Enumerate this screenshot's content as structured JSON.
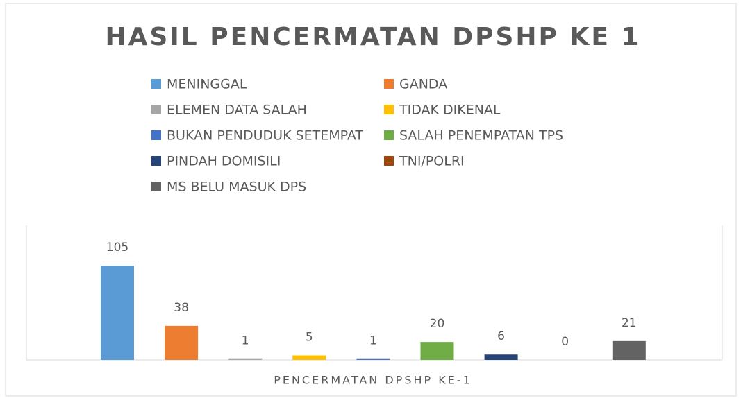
{
  "chart_data": {
    "type": "bar",
    "title": "HASIL PENCERMATAN DPSHP KE 1",
    "categories": [
      "PENCERMATAN DPSHP KE-1"
    ],
    "ylim": [
      0,
      150
    ],
    "series": [
      {
        "name": "MENINGGAL",
        "color": "#5b9bd5",
        "values": [
          105
        ]
      },
      {
        "name": "GANDA",
        "color": "#ed7d31",
        "values": [
          38
        ]
      },
      {
        "name": "ELEMEN DATA SALAH",
        "color": "#a5a5a5",
        "values": [
          1
        ]
      },
      {
        "name": "TIDAK DIKENAL",
        "color": "#ffc000",
        "values": [
          5
        ]
      },
      {
        "name": "BUKAN PENDUDUK SETEMPAT",
        "color": "#4472c4",
        "values": [
          1
        ]
      },
      {
        "name": "SALAH PENEMPATAN TPS",
        "color": "#70ad47",
        "values": [
          20
        ]
      },
      {
        "name": "PINDAH DOMISILI",
        "color": "#264478",
        "values": [
          6
        ]
      },
      {
        "name": "TNI/POLRI",
        "color": "#9e480e",
        "values": [
          0
        ]
      },
      {
        "name": "MS BELU MASUK DPS",
        "color": "#636363",
        "values": [
          21
        ]
      }
    ]
  }
}
